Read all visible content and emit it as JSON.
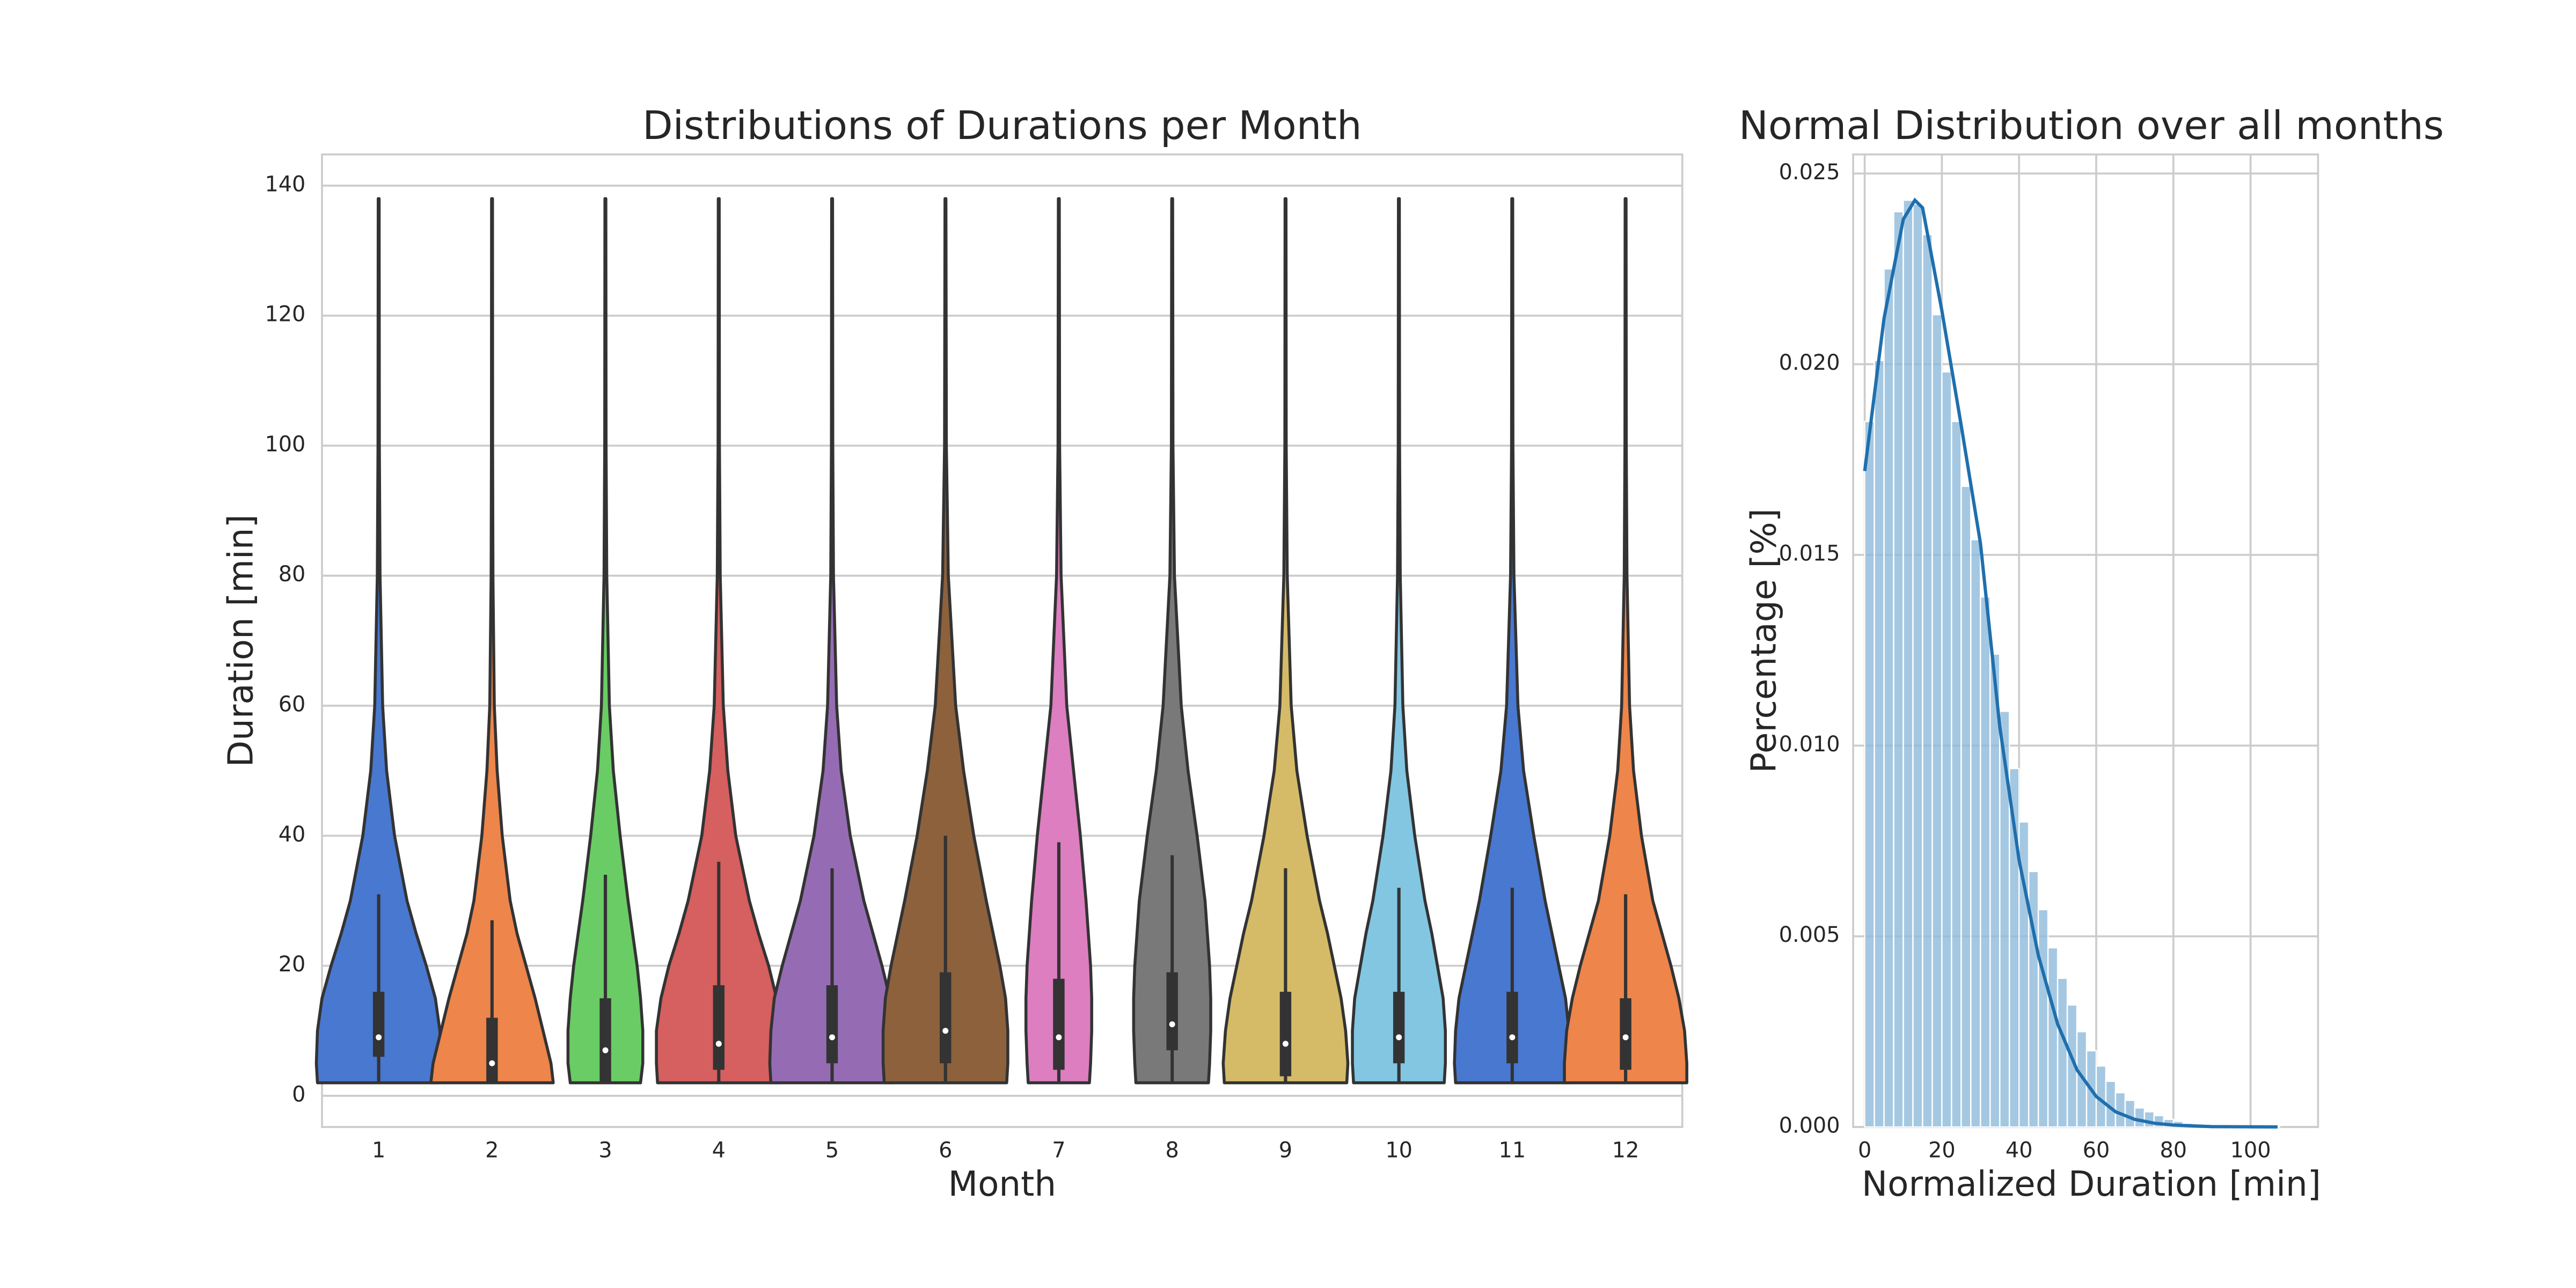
{
  "chart_data": [
    {
      "type": "violin",
      "title": "Distributions of Durations per Month",
      "x_label": "Month",
      "y_label": "Duration [min]",
      "categories": [
        "1",
        "2",
        "3",
        "4",
        "5",
        "6",
        "7",
        "8",
        "9",
        "10",
        "11",
        "12"
      ],
      "ylim": [
        -4.8,
        144.8
      ],
      "yticks": [
        0,
        20,
        40,
        60,
        80,
        100,
        120,
        140
      ],
      "grid": true,
      "density_levels": [
        2,
        5,
        10,
        15,
        20,
        25,
        30,
        40,
        50,
        60,
        80,
        100,
        138
      ],
      "violins": [
        {
          "color": "#4878d0",
          "q1": 6,
          "median": 9,
          "q3": 16,
          "whisker_low": 2,
          "whisker_high": 31,
          "density": [
            0.54,
            0.55,
            0.54,
            0.5,
            0.42,
            0.33,
            0.25,
            0.14,
            0.07,
            0.035,
            0.012,
            0.006,
            0.004
          ]
        },
        {
          "color": "#ee854a",
          "q1": 2,
          "median": 5,
          "q3": 12,
          "whisker_low": 2,
          "whisker_high": 27,
          "density": [
            0.54,
            0.52,
            0.45,
            0.38,
            0.3,
            0.22,
            0.16,
            0.09,
            0.045,
            0.02,
            0.008,
            0.005,
            0.004
          ]
        },
        {
          "color": "#6acc64",
          "q1": 2,
          "median": 7,
          "q3": 15,
          "whisker_low": 2,
          "whisker_high": 34,
          "density": [
            0.31,
            0.33,
            0.33,
            0.31,
            0.28,
            0.24,
            0.2,
            0.13,
            0.07,
            0.035,
            0.012,
            0.006,
            0.004
          ]
        },
        {
          "color": "#d65f5f",
          "q1": 4,
          "median": 8,
          "q3": 17,
          "whisker_low": 2,
          "whisker_high": 36,
          "density": [
            0.54,
            0.55,
            0.55,
            0.51,
            0.44,
            0.35,
            0.27,
            0.15,
            0.08,
            0.04,
            0.013,
            0.006,
            0.004
          ]
        },
        {
          "color": "#956cb4",
          "q1": 5,
          "median": 9,
          "q3": 17,
          "whisker_low": 2,
          "whisker_high": 35,
          "density": [
            0.54,
            0.55,
            0.54,
            0.51,
            0.44,
            0.36,
            0.28,
            0.16,
            0.08,
            0.04,
            0.012,
            0.006,
            0.004
          ]
        },
        {
          "color": "#8c613c",
          "q1": 5,
          "median": 10,
          "q3": 19,
          "whisker_low": 2,
          "whisker_high": 40,
          "density": [
            0.54,
            0.55,
            0.55,
            0.53,
            0.48,
            0.42,
            0.36,
            0.25,
            0.16,
            0.09,
            0.025,
            0.008,
            0.004
          ]
        },
        {
          "color": "#dc7ec0",
          "q1": 4,
          "median": 9,
          "q3": 18,
          "whisker_low": 2,
          "whisker_high": 39,
          "density": [
            0.27,
            0.28,
            0.29,
            0.29,
            0.28,
            0.26,
            0.24,
            0.19,
            0.13,
            0.07,
            0.02,
            0.007,
            0.004
          ]
        },
        {
          "color": "#797979",
          "q1": 7,
          "median": 11,
          "q3": 19,
          "whisker_low": 2,
          "whisker_high": 37,
          "density": [
            0.32,
            0.33,
            0.34,
            0.34,
            0.33,
            0.31,
            0.29,
            0.22,
            0.14,
            0.08,
            0.02,
            0.007,
            0.004
          ]
        },
        {
          "color": "#d5bb67",
          "q1": 3,
          "median": 8,
          "q3": 16,
          "whisker_low": 2,
          "whisker_high": 35,
          "density": [
            0.54,
            0.55,
            0.53,
            0.49,
            0.43,
            0.37,
            0.3,
            0.19,
            0.1,
            0.05,
            0.015,
            0.006,
            0.004
          ]
        },
        {
          "color": "#82c6e2",
          "q1": 5,
          "median": 9,
          "q3": 16,
          "whisker_low": 2,
          "whisker_high": 32,
          "density": [
            0.4,
            0.41,
            0.41,
            0.39,
            0.34,
            0.29,
            0.23,
            0.14,
            0.07,
            0.035,
            0.012,
            0.006,
            0.004
          ]
        },
        {
          "color": "#4878d0",
          "q1": 5,
          "median": 9,
          "q3": 16,
          "whisker_low": 2,
          "whisker_high": 32,
          "density": [
            0.5,
            0.51,
            0.5,
            0.47,
            0.41,
            0.35,
            0.29,
            0.19,
            0.1,
            0.05,
            0.015,
            0.006,
            0.004
          ]
        },
        {
          "color": "#ee854a",
          "q1": 4,
          "median": 9,
          "q3": 15,
          "whisker_low": 2,
          "whisker_high": 31,
          "density": [
            0.54,
            0.54,
            0.52,
            0.47,
            0.4,
            0.32,
            0.24,
            0.14,
            0.07,
            0.035,
            0.012,
            0.006,
            0.004
          ]
        }
      ]
    },
    {
      "type": "histogram",
      "title": "Normal Distribution over all months",
      "x_label": "Normalized Duration [min]",
      "y_label": "Percentage [%]",
      "xlim": [
        -3,
        117.5
      ],
      "ylim": [
        0,
        0.0255
      ],
      "grid": true,
      "color": "#8fbadb",
      "line_color": "#1f6fad",
      "xticks": [
        0,
        20,
        40,
        60,
        80,
        100
      ],
      "yticks": [
        {
          "value": 0,
          "label": "0.000"
        },
        {
          "value": 0.005,
          "label": "0.005"
        },
        {
          "value": 0.01,
          "label": "0.010"
        },
        {
          "value": 0.015,
          "label": "0.015"
        },
        {
          "value": 0.02,
          "label": "0.020"
        },
        {
          "value": 0.025,
          "label": "0.025"
        }
      ],
      "bins": [
        0,
        2.5,
        5,
        7.5,
        10,
        12.5,
        15,
        17.5,
        20,
        22.5,
        25,
        27.5,
        30,
        32.5,
        35,
        37.5,
        40,
        42.5,
        45,
        47.5,
        50,
        52.5,
        55,
        57.5,
        60,
        62.5,
        65,
        67.5,
        70,
        72.5,
        75,
        77.5,
        80,
        82.5,
        85,
        87.5,
        90,
        92.5,
        95,
        97.5,
        100,
        102.5,
        105,
        107.5
      ],
      "counts": [
        0.0185,
        0.0201,
        0.0225,
        0.024,
        0.0243,
        0.0242,
        0.0234,
        0.0213,
        0.0198,
        0.0185,
        0.0168,
        0.0154,
        0.0139,
        0.0124,
        0.0109,
        0.0094,
        0.008,
        0.0067,
        0.0057,
        0.0047,
        0.0039,
        0.0032,
        0.0025,
        0.002,
        0.0016,
        0.0012,
        0.0009,
        0.0007,
        0.0005,
        0.0004,
        0.0003,
        0.0002,
        0.00015,
        0.0001,
        7e-05,
        5e-05,
        4e-05,
        3e-05,
        2e-05,
        2e-05,
        1e-05,
        1e-05,
        1e-05
      ],
      "kde": {
        "x": [
          0,
          5,
          10,
          13,
          15,
          20,
          25,
          30,
          35,
          40,
          45,
          50,
          55,
          60,
          65,
          70,
          75,
          80,
          90,
          100,
          107
        ],
        "y": [
          0.0172,
          0.0212,
          0.0238,
          0.0243,
          0.0241,
          0.0214,
          0.0184,
          0.0153,
          0.0105,
          0.007,
          0.0045,
          0.0027,
          0.0015,
          0.0008,
          0.0004,
          0.0002,
          0.0001,
          5e-05,
          1e-05,
          5e-06,
          2e-06
        ]
      }
    }
  ]
}
